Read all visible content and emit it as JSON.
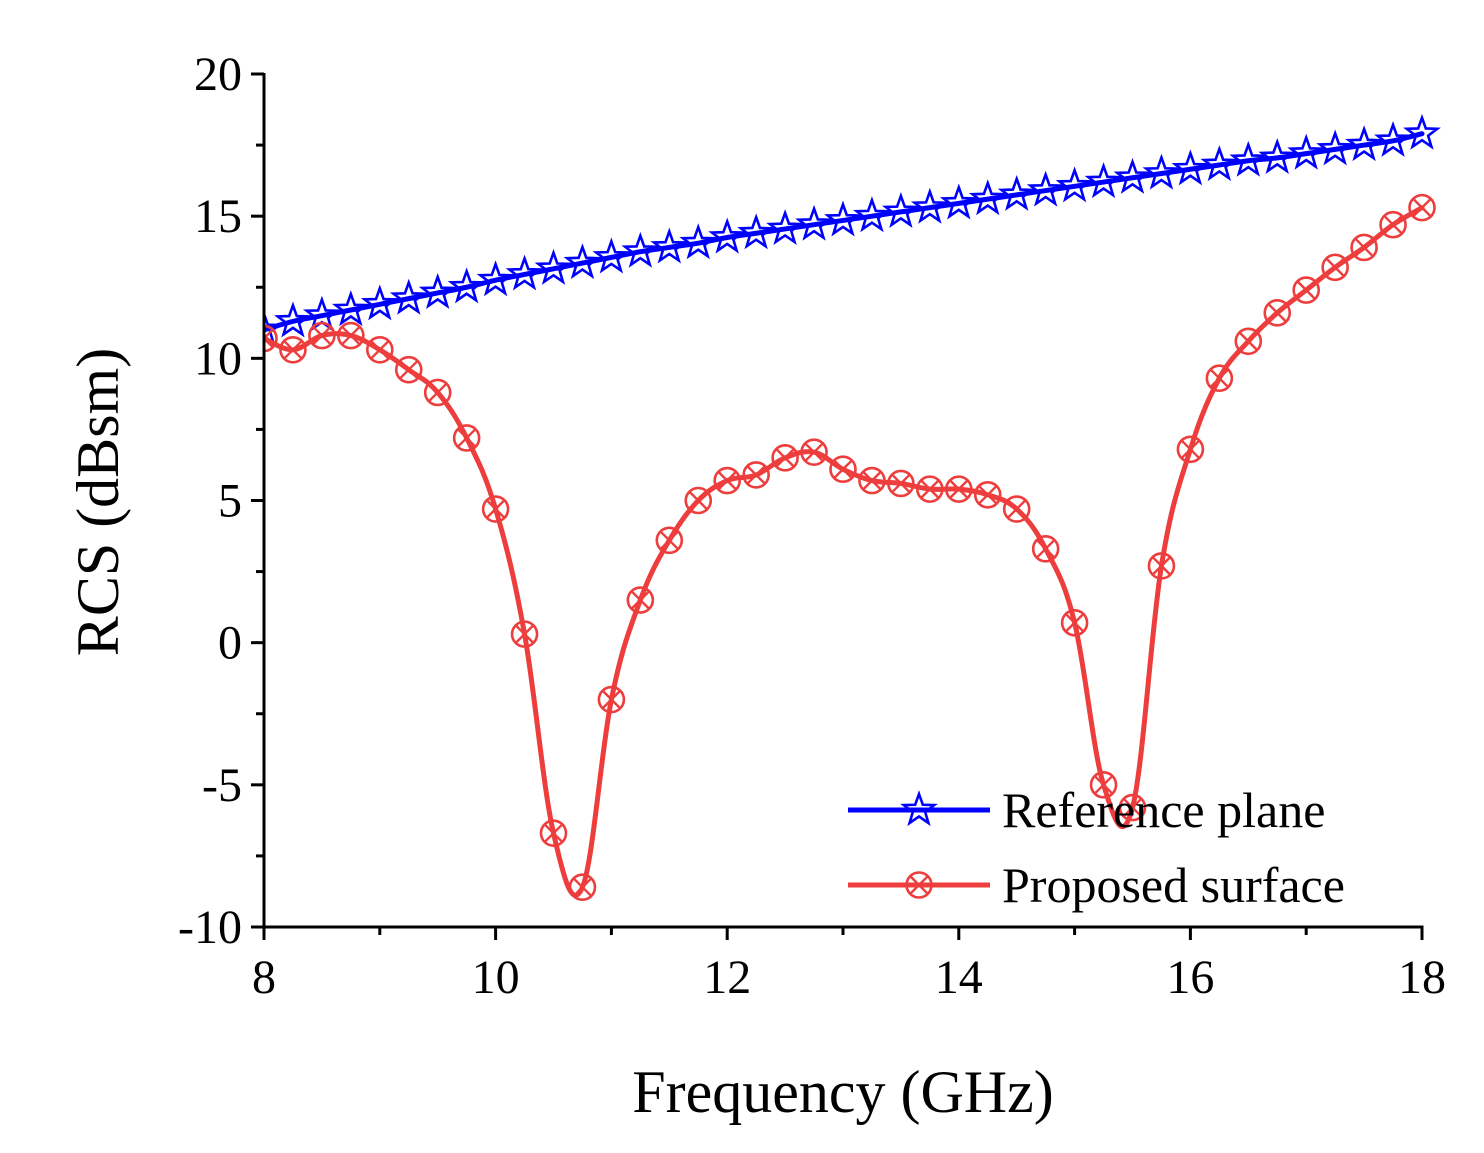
{
  "chart_data": {
    "type": "line",
    "title": "",
    "xlabel": "Frequency (GHz)",
    "ylabel": "RCS (dBsm)",
    "xlim": [
      8,
      18
    ],
    "ylim": [
      -10,
      20
    ],
    "x_ticks": [
      8,
      10,
      12,
      14,
      16,
      18
    ],
    "x_tick_labels": [
      "8",
      "10",
      "12",
      "14",
      "16",
      "18"
    ],
    "y_ticks": [
      -10,
      -5,
      0,
      5,
      10,
      15,
      20
    ],
    "y_tick_labels": [
      "-10",
      "-5",
      "0",
      "5",
      "10",
      "15",
      "20"
    ],
    "grid": false,
    "legend_position": "bottom-right",
    "series": [
      {
        "name": "Reference plane",
        "color": "#0000ff",
        "marker": "star",
        "x": [
          8,
          8.25,
          8.5,
          8.75,
          9,
          9.25,
          9.5,
          9.75,
          10,
          10.25,
          10.5,
          10.75,
          11,
          11.25,
          11.5,
          11.75,
          12,
          12.25,
          12.5,
          12.75,
          13,
          13.25,
          13.5,
          13.75,
          14,
          14.25,
          14.5,
          14.75,
          15,
          15.25,
          15.5,
          15.75,
          16,
          16.25,
          16.5,
          16.75,
          17,
          17.25,
          17.5,
          17.75,
          18
        ],
        "values": [
          11.0,
          11.3,
          11.5,
          11.7,
          11.9,
          12.1,
          12.3,
          12.5,
          12.75,
          12.95,
          13.15,
          13.35,
          13.55,
          13.75,
          13.9,
          14.05,
          14.25,
          14.4,
          14.55,
          14.7,
          14.85,
          15.0,
          15.15,
          15.3,
          15.45,
          15.6,
          15.75,
          15.9,
          16.05,
          16.2,
          16.35,
          16.5,
          16.65,
          16.8,
          16.95,
          17.05,
          17.2,
          17.35,
          17.5,
          17.65,
          17.9
        ]
      },
      {
        "name": "Proposed surface",
        "color": "#ee3d3d",
        "marker": "circle-x",
        "x": [
          8,
          8.25,
          8.5,
          8.75,
          9,
          9.25,
          9.5,
          9.75,
          10,
          10.25,
          10.5,
          10.75,
          11,
          11.25,
          11.5,
          11.75,
          12,
          12.25,
          12.5,
          12.75,
          13,
          13.25,
          13.5,
          13.75,
          14,
          14.25,
          14.5,
          14.75,
          15,
          15.25,
          15.5,
          15.75,
          16,
          16.25,
          16.5,
          16.75,
          17,
          17.25,
          17.5,
          17.75,
          18
        ],
        "values": [
          10.7,
          10.3,
          10.8,
          10.8,
          10.3,
          9.6,
          8.8,
          7.2,
          4.7,
          0.3,
          -6.7,
          -8.6,
          -2.0,
          1.5,
          3.6,
          5.0,
          5.7,
          5.9,
          6.5,
          6.7,
          6.1,
          5.7,
          5.6,
          5.4,
          5.4,
          5.2,
          4.7,
          3.3,
          0.7,
          -5.0,
          -5.8,
          2.7,
          6.8,
          9.3,
          10.6,
          11.6,
          12.4,
          13.2,
          13.9,
          14.7,
          15.3
        ]
      }
    ]
  }
}
